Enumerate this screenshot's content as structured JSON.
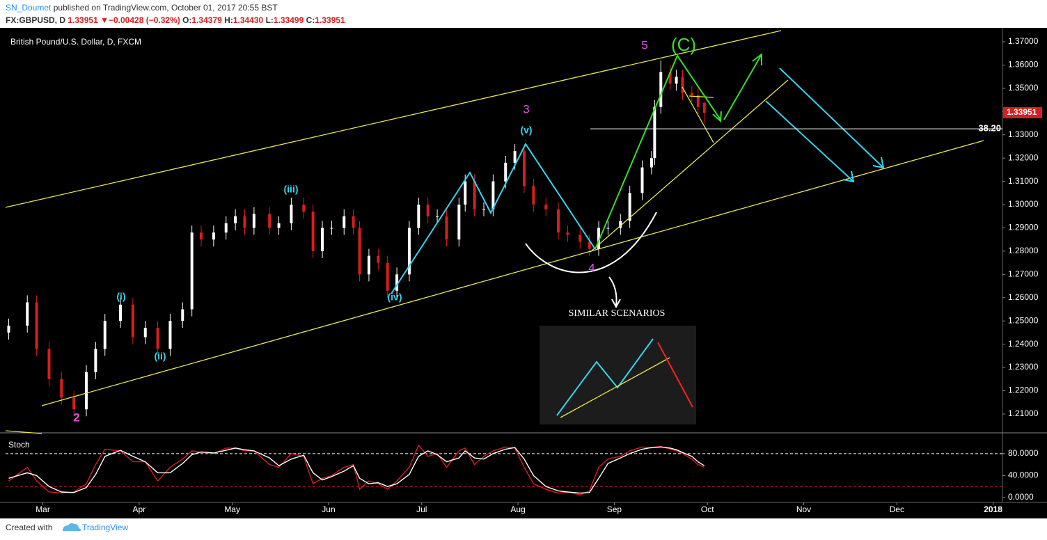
{
  "header": {
    "author": "SN_Doumet",
    "published": "published on TradingView.com, October 01, 2017 20:55 BST",
    "symbol": "FX:GBPUSD, D",
    "price": "1.33951",
    "arrow": "▼",
    "change": "−0.00428 (−0.32%)",
    "open_label": "O:",
    "open": "1.34379",
    "high_label": "H:",
    "high": "1.34430",
    "low_label": "L:",
    "low": "1.33499",
    "close_label": "C:",
    "close": "1.33951"
  },
  "footer": {
    "created": "Created with",
    "brand": "TradingView"
  },
  "chart_data": [
    {
      "type": "candlestick",
      "title": "British Pound/U.S. Dollar, D, FXCM",
      "up_color": "#ffffff",
      "down_color": "#d81e1e",
      "x": [
        -11,
        -5,
        -2,
        2,
        6,
        10,
        14,
        17,
        20,
        25,
        29,
        33,
        37,
        41,
        45,
        48,
        51,
        55,
        59,
        62,
        65,
        68,
        73,
        76,
        80,
        84,
        87,
        90,
        93,
        97,
        100,
        102,
        105,
        108,
        111,
        114,
        118,
        121,
        124,
        127,
        130,
        134,
        136,
        139,
        142,
        145,
        149,
        152,
        155,
        158,
        162,
        166,
        169,
        173,
        176,
        179,
        182,
        186,
        189,
        193,
        196,
        197,
        199,
        202,
        204,
        206,
        209,
        211,
        213
      ],
      "open": [
        1.245,
        1.248,
        1.258,
        1.238,
        1.225,
        1.217,
        1.212,
        1.228,
        1.238,
        1.25,
        1.257,
        1.243,
        1.247,
        1.238,
        1.25,
        1.255,
        1.288,
        1.285,
        1.288,
        1.292,
        1.295,
        1.29,
        1.296,
        1.29,
        1.292,
        1.3,
        1.297,
        1.28,
        1.29,
        1.29,
        1.295,
        1.29,
        1.27,
        1.278,
        1.275,
        1.263,
        1.27,
        1.29,
        1.3,
        1.295,
        1.295,
        1.285,
        1.3,
        1.31,
        1.298,
        1.298,
        1.31,
        1.318,
        1.323,
        1.308,
        1.3,
        1.298,
        1.288,
        1.287,
        1.284,
        1.281,
        1.29,
        1.29,
        1.293,
        1.305,
        1.316,
        1.32,
        1.342,
        1.357,
        1.352,
        1.355,
        1.348,
        1.347,
        1.34379
      ],
      "high": [
        1.251,
        1.261,
        1.261,
        1.241,
        1.228,
        1.22,
        1.231,
        1.241,
        1.253,
        1.26,
        1.26,
        1.25,
        1.25,
        1.253,
        1.258,
        1.291,
        1.291,
        1.291,
        1.295,
        1.298,
        1.298,
        1.299,
        1.299,
        1.295,
        1.303,
        1.303,
        1.3,
        1.293,
        1.293,
        1.298,
        1.298,
        1.293,
        1.281,
        1.281,
        1.278,
        1.273,
        1.293,
        1.303,
        1.303,
        1.298,
        1.298,
        1.303,
        1.313,
        1.313,
        1.301,
        1.313,
        1.321,
        1.326,
        1.326,
        1.311,
        1.303,
        1.301,
        1.291,
        1.29,
        1.287,
        1.293,
        1.293,
        1.296,
        1.308,
        1.319,
        1.323,
        1.345,
        1.362,
        1.36,
        1.358,
        1.358,
        1.351,
        1.35,
        1.3443
      ],
      "low": [
        1.242,
        1.245,
        1.235,
        1.222,
        1.214,
        1.209,
        1.209,
        1.225,
        1.235,
        1.247,
        1.24,
        1.24,
        1.235,
        1.235,
        1.247,
        1.252,
        1.282,
        1.282,
        1.285,
        1.289,
        1.287,
        1.287,
        1.287,
        1.287,
        1.289,
        1.294,
        1.277,
        1.277,
        1.287,
        1.287,
        1.287,
        1.267,
        1.267,
        1.272,
        1.26,
        1.26,
        1.267,
        1.287,
        1.292,
        1.292,
        1.282,
        1.282,
        1.297,
        1.295,
        1.295,
        1.295,
        1.307,
        1.315,
        1.305,
        1.297,
        1.295,
        1.285,
        1.284,
        1.281,
        1.278,
        1.278,
        1.287,
        1.287,
        1.29,
        1.302,
        1.313,
        1.317,
        1.339,
        1.349,
        1.349,
        1.345,
        1.344,
        1.339,
        1.33499
      ],
      "close": [
        1.248,
        1.258,
        1.238,
        1.225,
        1.217,
        1.212,
        1.228,
        1.238,
        1.25,
        1.257,
        1.243,
        1.247,
        1.238,
        1.25,
        1.255,
        1.288,
        1.285,
        1.288,
        1.292,
        1.295,
        1.29,
        1.296,
        1.29,
        1.292,
        1.3,
        1.297,
        1.28,
        1.29,
        1.29,
        1.295,
        1.29,
        1.27,
        1.278,
        1.275,
        1.263,
        1.27,
        1.29,
        1.3,
        1.295,
        1.295,
        1.285,
        1.3,
        1.31,
        1.298,
        1.298,
        1.31,
        1.318,
        1.323,
        1.308,
        1.3,
        1.298,
        1.288,
        1.287,
        1.284,
        1.281,
        1.29,
        1.29,
        1.293,
        1.305,
        1.316,
        1.32,
        1.342,
        1.357,
        1.352,
        1.355,
        1.348,
        1.347,
        1.342,
        1.33951
      ],
      "xlim": [
        -12,
        309
      ],
      "xticks": [
        {
          "value": 0,
          "label": "Mar"
        },
        {
          "value": 31,
          "label": "Apr"
        },
        {
          "value": 61,
          "label": "May"
        },
        {
          "value": 92,
          "label": "Jun"
        },
        {
          "value": 122,
          "label": "Jul"
        },
        {
          "value": 153,
          "label": "Aug"
        },
        {
          "value": 184,
          "label": "Sep"
        },
        {
          "value": 214,
          "label": "Oct"
        },
        {
          "value": 245,
          "label": "Nov"
        },
        {
          "value": 275,
          "label": "Dec"
        },
        {
          "value": 306,
          "label": "2018"
        }
      ],
      "ylim": [
        1.2019,
        1.376
      ],
      "yticks": [
        {
          "value": 1.21,
          "label": "1.21000"
        },
        {
          "value": 1.22,
          "label": "1.22000"
        },
        {
          "value": 1.23,
          "label": "1.23000"
        },
        {
          "value": 1.24,
          "label": "1.24000"
        },
        {
          "value": 1.25,
          "label": "1.25000"
        },
        {
          "value": 1.26,
          "label": "1.26000"
        },
        {
          "value": 1.27,
          "label": "1.27000"
        },
        {
          "value": 1.28,
          "label": "1.28000"
        },
        {
          "value": 1.29,
          "label": "1.29000"
        },
        {
          "value": 1.3,
          "label": "1.30000"
        },
        {
          "value": 1.31,
          "label": "1.31000"
        },
        {
          "value": 1.32,
          "label": "1.32000"
        },
        {
          "value": 1.33,
          "label": "1.33000"
        },
        {
          "value": 1.34,
          "label": "1.34000"
        },
        {
          "value": 1.35,
          "label": "1.35000"
        },
        {
          "value": 1.36,
          "label": "1.36000"
        },
        {
          "value": 1.37,
          "label": "1.37000"
        }
      ],
      "last_price": {
        "value": 1.33951,
        "label": "1.33951"
      },
      "fib_line": {
        "price": 1.3326,
        "label": "38.20"
      },
      "wave_labels": [
        "2",
        "(i)",
        "(ii)",
        "(iii)",
        "(iv)",
        "3",
        "(v)",
        "4",
        "5",
        "(C)"
      ],
      "scenario_label": "SIMILAR SCENARIOS"
    },
    {
      "type": "line",
      "title": "Stoch",
      "x": [
        -11,
        -5,
        -2,
        2,
        6,
        10,
        14,
        17,
        20,
        25,
        29,
        33,
        37,
        41,
        45,
        48,
        51,
        55,
        59,
        62,
        65,
        68,
        73,
        76,
        80,
        84,
        87,
        90,
        93,
        97,
        100,
        102,
        105,
        108,
        111,
        114,
        118,
        121,
        124,
        127,
        130,
        134,
        136,
        139,
        142,
        145,
        149,
        152,
        155,
        158,
        162,
        166,
        169,
        173,
        176,
        179,
        182,
        186,
        189,
        193,
        196,
        197,
        199,
        202,
        204,
        206,
        209,
        211,
        213
      ],
      "series": [
        {
          "color": "#d81e1e",
          "values": [
            30,
            55,
            30,
            10,
            8,
            10,
            25,
            60,
            88,
            85,
            65,
            65,
            30,
            55,
            70,
            85,
            82,
            80,
            90,
            90,
            85,
            85,
            60,
            55,
            80,
            75,
            25,
            35,
            40,
            55,
            60,
            15,
            30,
            25,
            15,
            30,
            55,
            95,
            75,
            80,
            55,
            85,
            90,
            60,
            75,
            85,
            92,
            90,
            55,
            25,
            15,
            8,
            10,
            5,
            12,
            55,
            70,
            75,
            85,
            92,
            90,
            92,
            93,
            88,
            85,
            80,
            70,
            60,
            55
          ]
        },
        {
          "color": "#ffffff",
          "values": [
            35,
            45,
            40,
            20,
            10,
            9,
            18,
            42,
            75,
            86,
            75,
            65,
            45,
            45,
            62,
            78,
            83,
            81,
            86,
            90,
            87,
            85,
            72,
            58,
            70,
            77,
            45,
            32,
            38,
            48,
            58,
            35,
            25,
            27,
            20,
            25,
            42,
            75,
            85,
            78,
            65,
            72,
            85,
            72,
            70,
            80,
            88,
            91,
            70,
            40,
            20,
            12,
            10,
            8,
            9,
            35,
            62,
            72,
            80,
            88,
            91,
            91,
            92,
            90,
            87,
            82,
            75,
            65,
            58
          ]
        }
      ],
      "bands": [
        {
          "value": 80,
          "color": "#ffffff"
        },
        {
          "value": 20,
          "color": "#d81e1e"
        }
      ],
      "xlim": [
        -12,
        309
      ],
      "ylim": [
        -9,
        114
      ],
      "yticks": [
        {
          "value": 0,
          "label": "0.0000"
        },
        {
          "value": 40,
          "label": "40.0000"
        },
        {
          "value": 80,
          "label": "80.0000"
        }
      ]
    }
  ]
}
